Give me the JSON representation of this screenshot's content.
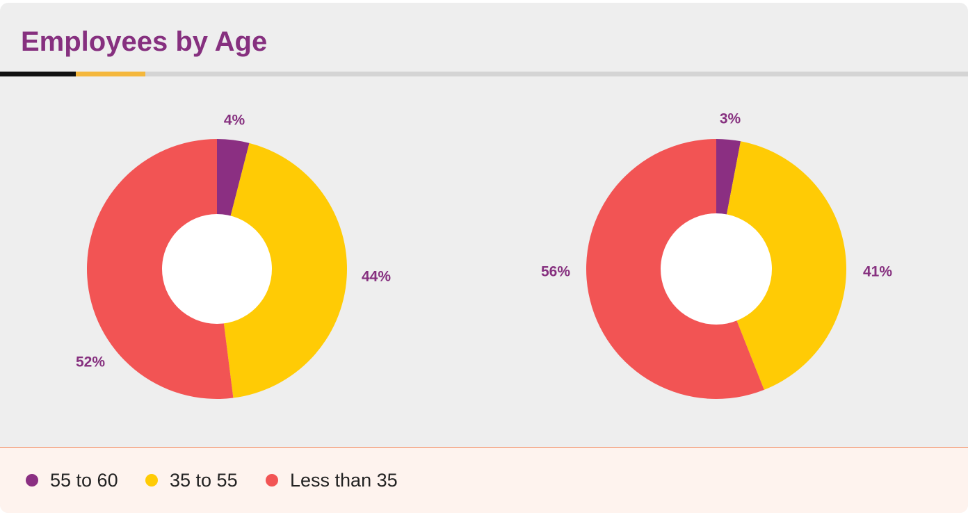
{
  "header": {
    "title": "Employees by Age"
  },
  "colors": {
    "title": "#86307f",
    "label": "#86307f",
    "card_background": "#eeeeee",
    "legend_background": "#fef3ee",
    "legend_border": "#ef8a60",
    "hole": "#ffffff"
  },
  "chart_data": [
    {
      "type": "pie",
      "donut": true,
      "categories": [
        "55 to 60",
        "35 to 55",
        "Less than 35"
      ],
      "values": [
        4,
        44,
        52
      ],
      "labels": [
        "4%",
        "44%",
        "52%"
      ],
      "colors": [
        "#8b2f82",
        "#ffcb05",
        "#f25454"
      ],
      "start_angle_deg": 0,
      "direction": "clockwise"
    },
    {
      "type": "pie",
      "donut": true,
      "categories": [
        "55 to 60",
        "35 to 55",
        "Less than 35"
      ],
      "values": [
        3,
        41,
        56
      ],
      "labels": [
        "3%",
        "41%",
        "56%"
      ],
      "colors": [
        "#8b2f82",
        "#ffcb05",
        "#f25454"
      ],
      "start_angle_deg": 0,
      "direction": "clockwise"
    }
  ],
  "legend": {
    "placement": "bottom-left",
    "items": [
      {
        "label": "55 to 60",
        "color": "#8b2f82"
      },
      {
        "label": "35 to 55",
        "color": "#ffcb05"
      },
      {
        "label": "Less than 35",
        "color": "#f25454"
      }
    ]
  }
}
